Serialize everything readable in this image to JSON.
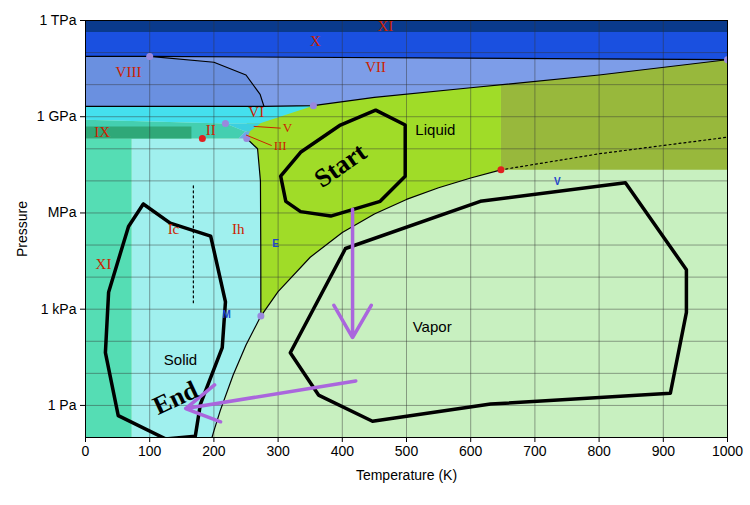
{
  "chart_data": {
    "type": "area",
    "xlabel": "Temperature (K)",
    "ylabel": "Pressure",
    "xlim": [
      0,
      1000
    ],
    "xticks": [
      0,
      100,
      200,
      300,
      400,
      500,
      600,
      700,
      800,
      900,
      1000
    ],
    "ylim": [
      0.1,
      1000000000000.0
    ],
    "yticks": [
      {
        "value": 1,
        "label": "1 Pa"
      },
      {
        "value": 1000,
        "label": "1 kPa"
      },
      {
        "value": 1000000.0,
        "label": "MPa"
      },
      {
        "value": 1000000000.0,
        "label": "1 GPa"
      },
      {
        "value": 1000000000000.0,
        "label": "1 TPa"
      }
    ],
    "log": "y",
    "grid": true,
    "areas": [
      {
        "color": "#c8f0c0",
        "points": [
          [
            0,
            0.1
          ],
          [
            1000,
            0.1
          ],
          [
            1000,
            1000000000000.0
          ],
          [
            0,
            1000000000000.0
          ]
        ]
      },
      {
        "color": "#a0dc28",
        "points": [
          [
            273.16,
            611.657
          ],
          [
            300,
            3537
          ],
          [
            350,
            41680
          ],
          [
            400,
            245770
          ],
          [
            450,
            932000
          ],
          [
            500,
            2640000.0
          ],
          [
            550,
            6120000.0
          ],
          [
            600,
            12340000.0
          ],
          [
            647.1,
            22060000.0
          ],
          [
            647.1,
            1000000000000.0
          ],
          [
            251.165,
            1000000000000.0
          ],
          [
            251.165,
            209900000.0
          ],
          [
            268,
            100000000.0
          ],
          [
            272.5,
            10000000.0
          ],
          [
            273,
            100000.0
          ]
        ]
      },
      {
        "color": "#98b83c",
        "points": [
          [
            647.1,
            22060000.0
          ],
          [
            1000,
            22060000.0
          ],
          [
            1000,
            1000000000000.0
          ],
          [
            647.1,
            1000000000000.0
          ]
        ]
      },
      {
        "color": "#55ddb4",
        "points": [
          [
            0,
            0.1
          ],
          [
            72,
            0.1
          ],
          [
            72,
            209900000.0
          ],
          [
            0,
            209900000.0
          ]
        ]
      },
      {
        "color": "#a0f0ee",
        "points": [
          [
            72,
            0.1
          ],
          [
            197,
            0.1
          ],
          [
            200,
            0.16
          ],
          [
            210,
            0.7
          ],
          [
            230,
            8.9
          ],
          [
            250,
            76
          ],
          [
            273.16,
            611.657
          ],
          [
            273,
            100000.0
          ],
          [
            272.5,
            10000000.0
          ],
          [
            268,
            100000000.0
          ],
          [
            251.165,
            209900000.0
          ],
          [
            72,
            209900000.0
          ]
        ]
      },
      {
        "color": "#44cfb0",
        "points": [
          [
            0,
            209900000.0
          ],
          [
            238.5,
            210000000.0
          ],
          [
            248.85,
            344000000.0
          ],
          [
            218,
            620000000.0
          ],
          [
            0,
            800000000.0
          ]
        ]
      },
      {
        "color": "#2fa878",
        "points": [
          [
            0,
            209900000.0
          ],
          [
            165,
            209900000.0
          ],
          [
            165,
            500000000.0
          ],
          [
            0,
            500000000.0
          ]
        ]
      },
      {
        "color": "#6aa8e8",
        "points": [
          [
            238.5,
            210000000.0
          ],
          [
            251.165,
            209900000.0
          ],
          [
            256.164,
            350100000.0
          ],
          [
            248.85,
            344000000.0
          ]
        ]
      },
      {
        "color": "#3ccfe0",
        "points": [
          [
            248.85,
            344000000.0
          ],
          [
            256.164,
            350100000.0
          ],
          [
            273.31,
            632400000.0
          ],
          [
            218,
            620000000.0
          ]
        ]
      },
      {
        "color": "#44e0ee",
        "points": [
          [
            0,
            800000000.0
          ],
          [
            218,
            620000000.0
          ],
          [
            273.31,
            632400000.0
          ],
          [
            355,
            2216000000.0
          ],
          [
            0,
            2100000000.0
          ]
        ]
      },
      {
        "color": "#7d9de8",
        "points": [
          [
            0,
            2100000000.0
          ],
          [
            278,
            2100000000.0
          ],
          [
            355,
            2216000000.0
          ],
          [
            450,
            4000000000.0
          ],
          [
            600,
            8000000000.0
          ],
          [
            800,
            20000000000.0
          ],
          [
            1000,
            60000000000.0
          ],
          [
            1000,
            1000000000000.0
          ],
          [
            0,
            1000000000000.0
          ]
        ]
      },
      {
        "color": "#6a90e0",
        "points": [
          [
            0,
            2100000000.0
          ],
          [
            278,
            2100000000.0
          ],
          [
            272,
            5000000000.0
          ],
          [
            250,
            20000000000.0
          ],
          [
            200,
            50000000000.0
          ],
          [
            100,
            76000000000.0
          ],
          [
            0,
            76000000000.0
          ]
        ]
      },
      {
        "color": "#1a50e0",
        "points": [
          [
            0,
            76000000000.0
          ],
          [
            100,
            76000000000.0
          ],
          [
            1000,
            60000000000.0
          ],
          [
            1000,
            440000000000.0
          ],
          [
            0,
            440000000000.0
          ]
        ]
      },
      {
        "color": "#0a3a8c",
        "points": [
          [
            0,
            440000000000.0
          ],
          [
            1000,
            440000000000.0
          ],
          [
            1000,
            1000000000000.0
          ],
          [
            0,
            1000000000000.0
          ]
        ]
      }
    ],
    "boundaries": [
      {
        "color": "#000000",
        "line_style": "solid",
        "points": [
          [
            273.16,
            611.657
          ],
          [
            300,
            3537
          ],
          [
            350,
            41680
          ],
          [
            400,
            245770
          ],
          [
            450,
            932000
          ],
          [
            500,
            2640000.0
          ],
          [
            550,
            6120000.0
          ],
          [
            600,
            12340000.0
          ],
          [
            647.1,
            22060000.0
          ]
        ]
      },
      {
        "color": "#000000",
        "line_style": "solid",
        "points": [
          [
            197,
            0.1
          ],
          [
            200,
            0.16
          ],
          [
            210,
            0.7
          ],
          [
            230,
            8.9
          ],
          [
            250,
            76
          ],
          [
            273.16,
            611.657
          ]
        ]
      },
      {
        "color": "#000000",
        "line_style": "solid",
        "points": [
          [
            273.16,
            611.657
          ],
          [
            273,
            100000.0
          ],
          [
            272.5,
            10000000.0
          ],
          [
            268,
            100000000.0
          ],
          [
            251.165,
            209900000.0
          ]
        ]
      },
      {
        "color": "#000000",
        "line_style": "solid",
        "points": [
          [
            278,
            2100000000.0
          ],
          [
            355,
            2216000000.0
          ],
          [
            450,
            4000000000.0
          ],
          [
            600,
            8000000000.0
          ],
          [
            800,
            20000000000.0
          ],
          [
            1000,
            60000000000.0
          ]
        ]
      },
      {
        "color": "#000000",
        "line_style": "solid",
        "points": [
          [
            278,
            2100000000.0
          ],
          [
            272,
            5000000000.0
          ],
          [
            250,
            20000000000.0
          ],
          [
            200,
            50000000000.0
          ],
          [
            100,
            76000000000.0
          ]
        ]
      },
      {
        "color": "#000000",
        "line_style": "solid",
        "points": [
          [
            0,
            76000000000.0
          ],
          [
            100,
            76000000000.0
          ],
          [
            1000,
            60000000000.0
          ]
        ]
      },
      {
        "color": "#000000",
        "line_style": "solid",
        "points": [
          [
            0,
            2100000000.0
          ],
          [
            278,
            2100000000.0
          ]
        ]
      },
      {
        "color": "#000000",
        "line_style": "dotted",
        "points": [
          [
            647.1,
            22060000.0
          ],
          [
            800,
            70000000.0
          ],
          [
            1000,
            230000000.0
          ]
        ]
      },
      {
        "color": "#000000",
        "line_style": "dotted",
        "points": [
          [
            168,
            7000000.0
          ],
          [
            168,
            1600.0
          ]
        ]
      }
    ],
    "points": [
      {
        "color": "#e02020",
        "marker": "circle",
        "values": [
          [
            182,
            210000000.0
          ],
          [
            647.1,
            22060000.0
          ]
        ]
      },
      {
        "color": "#9988dd",
        "marker": "circle",
        "values": [
          [
            273.16,
            611.657
          ],
          [
            100,
            76000000000.0
          ],
          [
            1000,
            60000000000.0
          ],
          [
            355,
            2216000000.0
          ],
          [
            218,
            620000000.0
          ],
          [
            251.165,
            209900000.0
          ]
        ]
      }
    ],
    "phase_labels": {
      "color": "#cc2200",
      "items": [
        {
          "text": "XI",
          "x": 467,
          "y": 680000000000.0
        },
        {
          "text": "X",
          "x": 358,
          "y": 230000000000.0
        },
        {
          "text": "VIII",
          "x": 67,
          "y": 25000000000.0
        },
        {
          "text": "VII",
          "x": 452,
          "y": 35000000000.0
        },
        {
          "text": "VI",
          "x": 266,
          "y": 1400000000.0
        },
        {
          "text": "V",
          "x": 304,
          "y": 440000000.0,
          "pointer": [
            262,
            500000000.0
          ]
        },
        {
          "text": "III",
          "x": 290,
          "y": 126000000.0,
          "pointer": [
            250,
            270000000.0
          ]
        },
        {
          "text": "II",
          "x": 195,
          "y": 380000000.0
        },
        {
          "text": "IX",
          "x": 26,
          "y": 330000000.0
        },
        {
          "text": "Ic",
          "x": 137,
          "y": 310000.0
        },
        {
          "text": "Ih",
          "x": 238,
          "y": 310000.0
        },
        {
          "text": "XI",
          "x": 28,
          "y": 26000.0
        }
      ]
    },
    "region_labels": {
      "color": "#000000",
      "items": [
        {
          "text": "Solid",
          "x": 148,
          "y": 26
        },
        {
          "text": "Liquid",
          "x": 545,
          "y": 380000000.0
        },
        {
          "text": "Vapor",
          "x": 540,
          "y": 270
        }
      ]
    },
    "planet_labels": {
      "color": "#2244cc",
      "items": [
        {
          "text": "E",
          "x": 296,
          "y": 110000.0
        },
        {
          "text": "M",
          "x": 220,
          "y": 690
        },
        {
          "text": "V",
          "x": 735,
          "y": 9300000.0
        }
      ]
    },
    "outlines": {
      "color": "#000000",
      "polygons": [
        [
          [
            304,
            14000000.0
          ],
          [
            335,
            78000000.0
          ],
          [
            397,
            550000000.0
          ],
          [
            452,
            1600000000.0
          ],
          [
            498,
            550000000.0
          ],
          [
            498,
            14000000.0
          ],
          [
            459,
            2300000.0
          ],
          [
            382,
            800000.0
          ],
          [
            335,
            1100000.0
          ],
          [
            312,
            2300000.0
          ]
        ],
        [
          [
            405,
            78000.0
          ],
          [
            615,
            2300000.0
          ],
          [
            841,
            8700000.0
          ],
          [
            936,
            17000.0
          ],
          [
            936,
            800
          ],
          [
            911,
            2.4
          ],
          [
            631,
            1.1
          ],
          [
            447,
            0.32
          ],
          [
            363,
            2.1
          ],
          [
            319,
            44
          ]
        ],
        [
          [
            90,
            1900000.0
          ],
          [
            132,
            480000.0
          ],
          [
            195,
            190000.0
          ],
          [
            218,
            1700.0
          ],
          [
            213,
            63
          ],
          [
            179,
            1.1
          ],
          [
            171,
            0.11
          ],
          [
            125,
            0.09
          ],
          [
            51,
            0.48
          ],
          [
            31,
            44
          ],
          [
            36,
            3400.0
          ],
          [
            67,
            380000.0
          ]
        ]
      ]
    },
    "route_labels": {
      "color": "#000000",
      "items": [
        {
          "text": "Start",
          "x": 397,
          "y": 30000000.0
        },
        {
          "text": "End",
          "x": 140,
          "y": 1.7
        }
      ]
    },
    "arrows": {
      "color": "#aa66dd",
      "items": [
        {
          "from": [
            416,
            1300000.0
          ],
          "to": [
            416,
            130
          ]
        },
        {
          "from": [
            421,
            5.8
          ],
          "to": [
            156,
            0.8
          ]
        }
      ]
    }
  }
}
